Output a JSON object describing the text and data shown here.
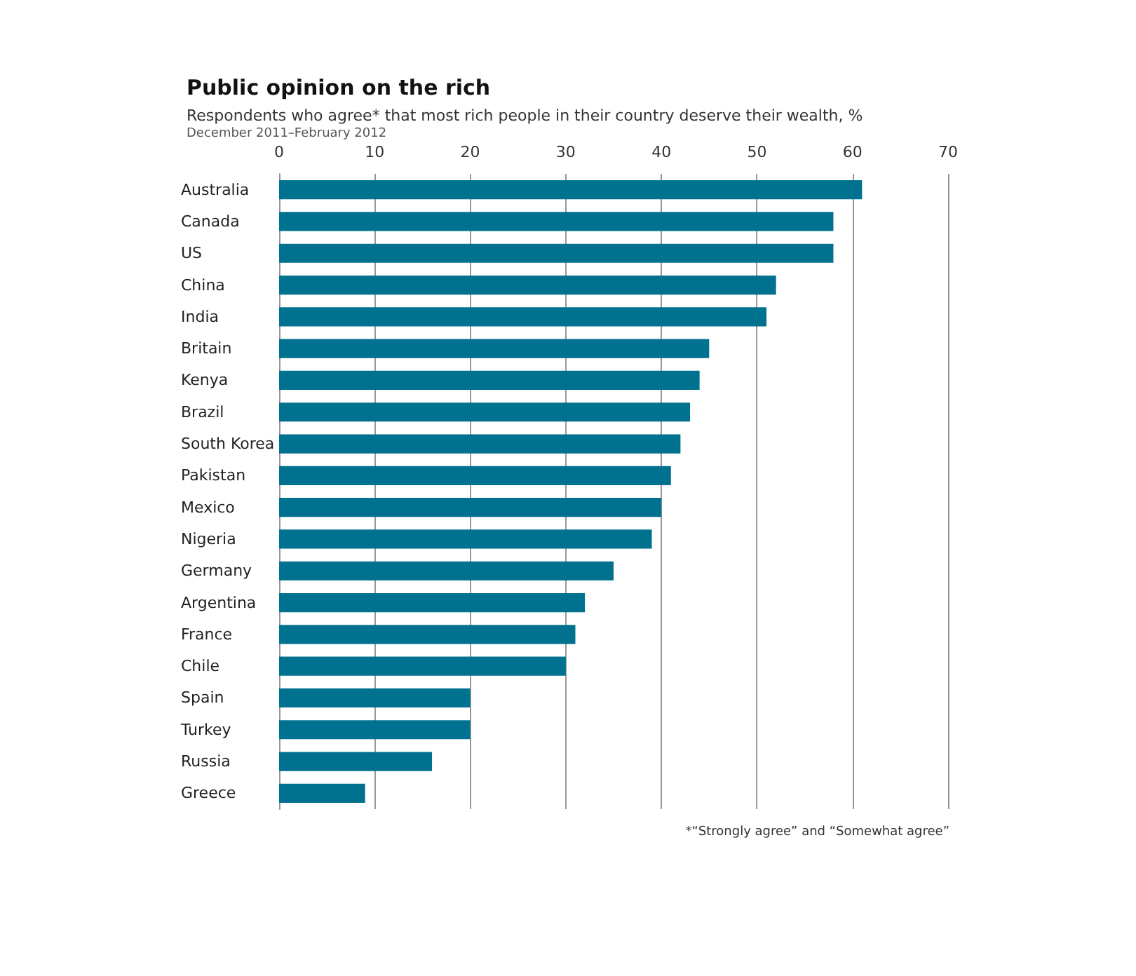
{
  "chart_data": {
    "type": "bar",
    "orientation": "horizontal",
    "title": "Public opinion on the rich",
    "subtitle": "Respondents who agree* that most rich people in their country deserve their wealth, %",
    "annotations": [
      "December 2011–February 2012",
      "*“Strongly agree” and “Somewhat agree”"
    ],
    "categories": [
      "Australia",
      "Canada",
      "US",
      "China",
      "India",
      "Britain",
      "Kenya",
      "Brazil",
      "South Korea",
      "Pakistan",
      "Mexico",
      "Nigeria",
      "Germany",
      "Argentina",
      "France",
      "Chile",
      "Spain",
      "Turkey",
      "Russia",
      "Greece"
    ],
    "values": [
      61,
      58,
      58,
      52,
      51,
      45,
      44,
      43,
      42,
      41,
      40,
      39,
      35,
      32,
      31,
      30,
      20,
      20,
      16,
      9
    ],
    "color": "#00728f",
    "xlim": [
      0,
      70
    ],
    "xticks": [
      0,
      10,
      20,
      30,
      40,
      50,
      60,
      70
    ],
    "grid": "x"
  }
}
